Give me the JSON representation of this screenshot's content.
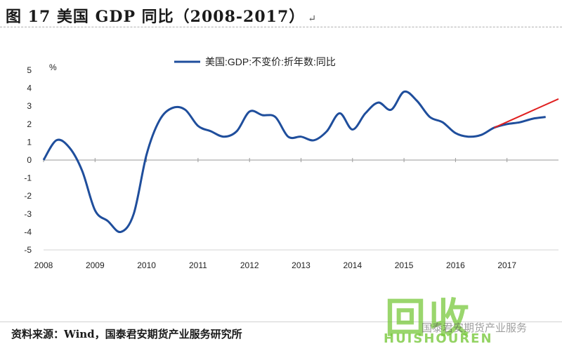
{
  "figure": {
    "title": "图 17  美国 GDP 同比（2008-2017）",
    "return_mark": "↵",
    "source": "资料来源：Wind，国泰君安期货产业服务研究所"
  },
  "watermark": {
    "glyph": "回收",
    "latin": "HUISHOUREN",
    "cn": "国泰君安期货产业服务"
  },
  "chart_data": {
    "type": "line",
    "ylabel": "%",
    "ylim": [
      -5,
      5
    ],
    "yticks": [
      "5",
      "4",
      "3",
      "2",
      "1",
      "0",
      "-1",
      "-2",
      "-3",
      "-4",
      "-5"
    ],
    "xlim": [
      2008,
      2018
    ],
    "xticks": [
      "2008",
      "2009",
      "2010",
      "2011",
      "2012",
      "2013",
      "2014",
      "2015",
      "2016",
      "2017"
    ],
    "grid": false,
    "legend_position": "top-center",
    "colors": {
      "series": "#1f4e9c",
      "trend": "#e02020",
      "axis": "#9a9a9a"
    },
    "series": [
      {
        "name": "美国:GDP:不变价:折年数:同比",
        "x": [
          2008.0,
          2008.25,
          2008.5,
          2008.75,
          2009.0,
          2009.25,
          2009.5,
          2009.75,
          2010.0,
          2010.25,
          2010.5,
          2010.75,
          2011.0,
          2011.25,
          2011.5,
          2011.75,
          2012.0,
          2012.25,
          2012.5,
          2012.75,
          2013.0,
          2013.25,
          2013.5,
          2013.75,
          2014.0,
          2014.25,
          2014.5,
          2014.75,
          2015.0,
          2015.25,
          2015.5,
          2015.75,
          2016.0,
          2016.25,
          2016.5,
          2016.75,
          2017.0,
          2017.25,
          2017.5,
          2017.75
        ],
        "values": [
          0.0,
          1.1,
          0.7,
          -0.6,
          -2.8,
          -3.4,
          -4.0,
          -3.0,
          0.3,
          2.2,
          2.9,
          2.8,
          1.9,
          1.6,
          1.3,
          1.6,
          2.7,
          2.5,
          2.4,
          1.3,
          1.3,
          1.1,
          1.6,
          2.6,
          1.7,
          2.6,
          3.2,
          2.8,
          3.8,
          3.3,
          2.4,
          2.1,
          1.5,
          1.3,
          1.4,
          1.8,
          2.0,
          2.1,
          2.3,
          2.4
        ]
      }
    ],
    "trend_line": {
      "x": [
        2016.75,
        2018.0
      ],
      "values": [
        1.8,
        3.4
      ]
    }
  }
}
